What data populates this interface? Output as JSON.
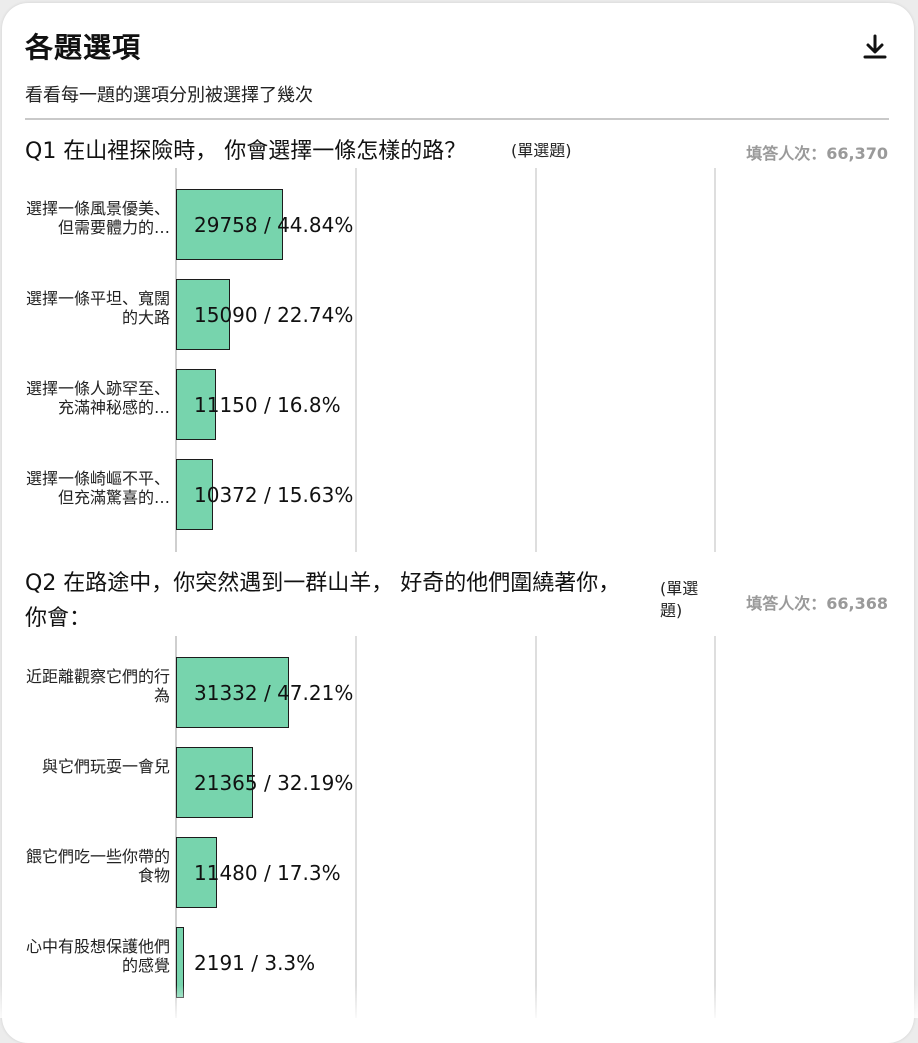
{
  "header": {
    "title": "各題選項",
    "subtitle": "看看每一題的選項分別被選擇了幾次",
    "download_icon": "download-icon"
  },
  "colors": {
    "bar": "#77d4ad",
    "bar_border": "#1c1c1c",
    "count_text": "#9a9a9a"
  },
  "chart_data": [
    {
      "type": "bar",
      "orientation": "horizontal",
      "title": "Q1 在山裡探險時， 你會選擇一條怎樣的路？",
      "question_type": "(單選題)",
      "responses_label": "填答人次：66,370",
      "categories": [
        "選擇一條風景優美、但需要體力的…",
        "選擇一條平坦、寬闊的大路",
        "選擇一條人跡罕至、充滿神秘感的…",
        "選擇一條崎嶇不平、但充滿驚喜的…"
      ],
      "values": [
        29758,
        15090,
        11150,
        10372
      ],
      "percents": [
        44.84,
        22.74,
        16.8,
        15.63
      ],
      "value_labels": [
        "29758 / 44.84%",
        "15090 / 22.74%",
        "11150 / 16.8%",
        "10372 / 15.63%"
      ],
      "xlim": [
        0,
        100
      ]
    },
    {
      "type": "bar",
      "orientation": "horizontal",
      "title": "Q2 在路途中，你突然遇到一群山羊， 好奇的他們圍繞著你，你會：",
      "question_type": "(單選題)",
      "responses_label": "填答人次：66,368",
      "categories": [
        "近距離觀察它們的行為",
        "與它們玩耍一會兒",
        "餵它們吃一些你帶的食物",
        "心中有股想保護他們的感覺"
      ],
      "values": [
        31332,
        21365,
        11480,
        2191
      ],
      "percents": [
        47.21,
        32.19,
        17.3,
        3.3
      ],
      "value_labels": [
        "31332 / 47.21%",
        "21365 / 32.19%",
        "11480 / 17.3%",
        "2191 / 3.3%"
      ],
      "xlim": [
        0,
        100
      ]
    }
  ]
}
